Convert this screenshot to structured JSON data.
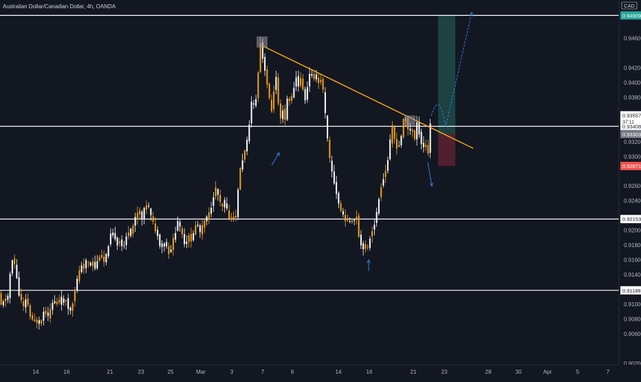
{
  "chart_data": {
    "type": "candlestick",
    "title": "Australian Dollar/Canadian Dollar, 4h, OANDA",
    "currency_tag": "CAD",
    "x_ticks": [
      "14",
      "16",
      "21",
      "23",
      "25",
      "Mar",
      "3",
      "7",
      "9",
      "14",
      "16",
      "21",
      "23",
      "28",
      "30",
      "Apr",
      "5",
      "7"
    ],
    "y_ticks": [
      "0.94600",
      "0.94200",
      "0.94000",
      "0.93800",
      "0.93200",
      "0.93000",
      "0.92600",
      "0.92400",
      "0.92000",
      "0.91800",
      "0.91600",
      "0.91400",
      "0.91000",
      "0.90800",
      "0.90600",
      "0.90200"
    ],
    "ylim": [
      0.9018,
      0.9495
    ],
    "grid": false,
    "colors": {
      "up": "#ffffff",
      "down": "#f7a21b",
      "background": "#131722",
      "trendline": "#f7a21b",
      "projection": "#2e7bcf",
      "target_zone": "#1f4a47",
      "stop_zone": "#5c2230",
      "level_line": "#ffffff"
    },
    "levels": [
      {
        "value": 0.94909,
        "label": "0.94909",
        "color": "#26a69a"
      },
      {
        "value": 0.93408,
        "label": "0.93408",
        "color": "#ffffff"
      },
      {
        "value": 0.92153,
        "label": "0.92153",
        "color": "#ffffff"
      },
      {
        "value": 0.91188,
        "label": "0.91188",
        "color": "#ffffff"
      }
    ],
    "price_tags": [
      {
        "value": 0.93557,
        "label": "0.93557",
        "extra": "37:11",
        "color": "#ffffff"
      },
      {
        "value": 0.93303,
        "label": "0.93303",
        "color": "#787b86"
      },
      {
        "value": 0.92871,
        "label": "0.92871",
        "color": "#ef5350"
      }
    ],
    "path": [
      {
        "t": 0,
        "p": 0.9115
      },
      {
        "t": 4,
        "p": 0.9095
      },
      {
        "t": 8,
        "p": 0.9112
      },
      {
        "t": 12,
        "p": 0.9098
      },
      {
        "t": 16,
        "p": 0.914
      },
      {
        "t": 20,
        "p": 0.9165
      },
      {
        "t": 24,
        "p": 0.915
      },
      {
        "t": 28,
        "p": 0.9118
      },
      {
        "t": 32,
        "p": 0.9105
      },
      {
        "t": 36,
        "p": 0.9095
      },
      {
        "t": 40,
        "p": 0.9112
      },
      {
        "t": 44,
        "p": 0.9088
      },
      {
        "t": 48,
        "p": 0.908
      },
      {
        "t": 52,
        "p": 0.9076
      },
      {
        "t": 56,
        "p": 0.9078
      },
      {
        "t": 60,
        "p": 0.9072
      },
      {
        "t": 64,
        "p": 0.9085
      },
      {
        "t": 68,
        "p": 0.9092
      },
      {
        "t": 72,
        "p": 0.908
      },
      {
        "t": 76,
        "p": 0.9098
      },
      {
        "t": 80,
        "p": 0.9105
      },
      {
        "t": 84,
        "p": 0.91
      },
      {
        "t": 88,
        "p": 0.9108
      },
      {
        "t": 92,
        "p": 0.91
      },
      {
        "t": 96,
        "p": 0.911
      },
      {
        "t": 100,
        "p": 0.9098
      },
      {
        "t": 104,
        "p": 0.909
      },
      {
        "t": 108,
        "p": 0.9105
      },
      {
        "t": 112,
        "p": 0.9128
      },
      {
        "t": 116,
        "p": 0.914
      },
      {
        "t": 120,
        "p": 0.9155
      },
      {
        "t": 124,
        "p": 0.9148
      },
      {
        "t": 128,
        "p": 0.9162
      },
      {
        "t": 132,
        "p": 0.915
      },
      {
        "t": 136,
        "p": 0.9158
      },
      {
        "t": 140,
        "p": 0.9148
      },
      {
        "t": 144,
        "p": 0.916
      },
      {
        "t": 148,
        "p": 0.917
      },
      {
        "t": 152,
        "p": 0.9155
      },
      {
        "t": 156,
        "p": 0.9165
      },
      {
        "t": 160,
        "p": 0.9185
      },
      {
        "t": 164,
        "p": 0.9198
      },
      {
        "t": 168,
        "p": 0.9192
      },
      {
        "t": 172,
        "p": 0.918
      },
      {
        "t": 176,
        "p": 0.9188
      },
      {
        "t": 180,
        "p": 0.9175
      },
      {
        "t": 184,
        "p": 0.9185
      },
      {
        "t": 188,
        "p": 0.92
      },
      {
        "t": 192,
        "p": 0.9195
      },
      {
        "t": 196,
        "p": 0.921
      },
      {
        "t": 200,
        "p": 0.922
      },
      {
        "t": 204,
        "p": 0.9228
      },
      {
        "t": 208,
        "p": 0.9215
      },
      {
        "t": 212,
        "p": 0.923
      },
      {
        "t": 216,
        "p": 0.9238
      },
      {
        "t": 220,
        "p": 0.9222
      },
      {
        "t": 224,
        "p": 0.921
      },
      {
        "t": 228,
        "p": 0.92
      },
      {
        "t": 232,
        "p": 0.9188
      },
      {
        "t": 236,
        "p": 0.9175
      },
      {
        "t": 240,
        "p": 0.9185
      },
      {
        "t": 244,
        "p": 0.9178
      },
      {
        "t": 248,
        "p": 0.9168
      },
      {
        "t": 252,
        "p": 0.9182
      },
      {
        "t": 256,
        "p": 0.9196
      },
      {
        "t": 260,
        "p": 0.9214
      },
      {
        "t": 264,
        "p": 0.92
      },
      {
        "t": 268,
        "p": 0.9188
      },
      {
        "t": 272,
        "p": 0.9178
      },
      {
        "t": 276,
        "p": 0.9196
      },
      {
        "t": 280,
        "p": 0.9185
      },
      {
        "t": 284,
        "p": 0.92
      },
      {
        "t": 288,
        "p": 0.9212
      },
      {
        "t": 292,
        "p": 0.9196
      },
      {
        "t": 296,
        "p": 0.9205
      },
      {
        "t": 300,
        "p": 0.9215
      },
      {
        "t": 304,
        "p": 0.9218
      },
      {
        "t": 308,
        "p": 0.923
      },
      {
        "t": 312,
        "p": 0.9248
      },
      {
        "t": 316,
        "p": 0.9258
      },
      {
        "t": 320,
        "p": 0.9242
      },
      {
        "t": 324,
        "p": 0.9228
      },
      {
        "t": 328,
        "p": 0.924
      },
      {
        "t": 332,
        "p": 0.9225
      },
      {
        "t": 336,
        "p": 0.9215
      },
      {
        "t": 340,
        "p": 0.9222
      },
      {
        "t": 344,
        "p": 0.9212
      },
      {
        "t": 348,
        "p": 0.926
      },
      {
        "t": 352,
        "p": 0.929
      },
      {
        "t": 356,
        "p": 0.9302
      },
      {
        "t": 360,
        "p": 0.9315
      },
      {
        "t": 364,
        "p": 0.9345
      },
      {
        "t": 368,
        "p": 0.938
      },
      {
        "t": 372,
        "p": 0.9362
      },
      {
        "t": 376,
        "p": 0.94
      },
      {
        "t": 380,
        "p": 0.9455
      },
      {
        "t": 384,
        "p": 0.943
      },
      {
        "t": 388,
        "p": 0.9412
      },
      {
        "t": 392,
        "p": 0.9385
      },
      {
        "t": 396,
        "p": 0.9358
      },
      {
        "t": 400,
        "p": 0.9392
      },
      {
        "t": 404,
        "p": 0.9412
      },
      {
        "t": 408,
        "p": 0.934
      },
      {
        "t": 412,
        "p": 0.9368
      },
      {
        "t": 416,
        "p": 0.935
      },
      {
        "t": 420,
        "p": 0.9385
      },
      {
        "t": 424,
        "p": 0.9372
      },
      {
        "t": 428,
        "p": 0.939
      },
      {
        "t": 432,
        "p": 0.9408
      },
      {
        "t": 436,
        "p": 0.9395
      },
      {
        "t": 440,
        "p": 0.941
      },
      {
        "t": 444,
        "p": 0.937
      },
      {
        "t": 448,
        "p": 0.9392
      },
      {
        "t": 452,
        "p": 0.9415
      },
      {
        "t": 456,
        "p": 0.9405
      },
      {
        "t": 460,
        "p": 0.9412
      },
      {
        "t": 464,
        "p": 0.9398
      },
      {
        "t": 468,
        "p": 0.9405
      },
      {
        "t": 472,
        "p": 0.9385
      },
      {
        "t": 476,
        "p": 0.934
      },
      {
        "t": 480,
        "p": 0.93
      },
      {
        "t": 484,
        "p": 0.928
      },
      {
        "t": 488,
        "p": 0.9262
      },
      {
        "t": 492,
        "p": 0.9245
      },
      {
        "t": 496,
        "p": 0.9228
      },
      {
        "t": 500,
        "p": 0.9222
      },
      {
        "t": 504,
        "p": 0.9215
      },
      {
        "t": 508,
        "p": 0.921
      },
      {
        "t": 512,
        "p": 0.9215
      },
      {
        "t": 516,
        "p": 0.9212
      },
      {
        "t": 520,
        "p": 0.922
      },
      {
        "t": 524,
        "p": 0.9188
      },
      {
        "t": 528,
        "p": 0.9175
      },
      {
        "t": 532,
        "p": 0.918
      },
      {
        "t": 536,
        "p": 0.9175
      },
      {
        "t": 540,
        "p": 0.9192
      },
      {
        "t": 544,
        "p": 0.9205
      },
      {
        "t": 548,
        "p": 0.9215
      },
      {
        "t": 552,
        "p": 0.924
      },
      {
        "t": 556,
        "p": 0.9262
      },
      {
        "t": 560,
        "p": 0.9275
      },
      {
        "t": 564,
        "p": 0.9285
      },
      {
        "t": 568,
        "p": 0.9315
      },
      {
        "t": 572,
        "p": 0.934
      },
      {
        "t": 576,
        "p": 0.932
      },
      {
        "t": 580,
        "p": 0.931
      },
      {
        "t": 584,
        "p": 0.9322
      },
      {
        "t": 588,
        "p": 0.9348
      },
      {
        "t": 592,
        "p": 0.9352
      },
      {
        "t": 596,
        "p": 0.933
      },
      {
        "t": 600,
        "p": 0.9342
      },
      {
        "t": 604,
        "p": 0.932
      },
      {
        "t": 608,
        "p": 0.9345
      },
      {
        "t": 612,
        "p": 0.9328
      },
      {
        "t": 616,
        "p": 0.931
      },
      {
        "t": 620,
        "p": 0.9318
      },
      {
        "t": 624,
        "p": 0.9305
      },
      {
        "t": 628,
        "p": 0.9355
      }
    ],
    "annotations": [
      {
        "type": "trendline",
        "from": {
          "t": 381,
          "p": 0.945
        },
        "to": {
          "t": 688,
          "p": 0.9311
        }
      },
      {
        "type": "zone",
        "kind": "target",
        "t0": 637,
        "t1": 662,
        "p0": 0.93303,
        "p1": 0.94909
      },
      {
        "type": "zone",
        "kind": "stop",
        "t0": 637,
        "t1": 662,
        "p0": 0.92871,
        "p1": 0.93303
      },
      {
        "type": "projection",
        "points": [
          {
            "t": 627,
            "p": 0.9355
          },
          {
            "t": 641,
            "p": 0.9375
          },
          {
            "t": 648,
            "p": 0.934
          },
          {
            "t": 686,
            "p": 0.9495
          }
        ]
      },
      {
        "type": "marker-box",
        "t": 381,
        "p": 0.9455
      },
      {
        "type": "marker-box",
        "t": 596,
        "p": 0.9348
      },
      {
        "type": "arrow",
        "direction": "up",
        "t0": 395,
        "p0": 0.9288,
        "t1": 406,
        "p1": 0.9305
      },
      {
        "type": "arrow",
        "direction": "up",
        "t0": 536,
        "p0": 0.9145,
        "t1": 536,
        "p1": 0.916
      },
      {
        "type": "arrow",
        "direction": "down",
        "t0": 622,
        "p0": 0.9292,
        "t1": 628,
        "p1": 0.926
      }
    ]
  }
}
